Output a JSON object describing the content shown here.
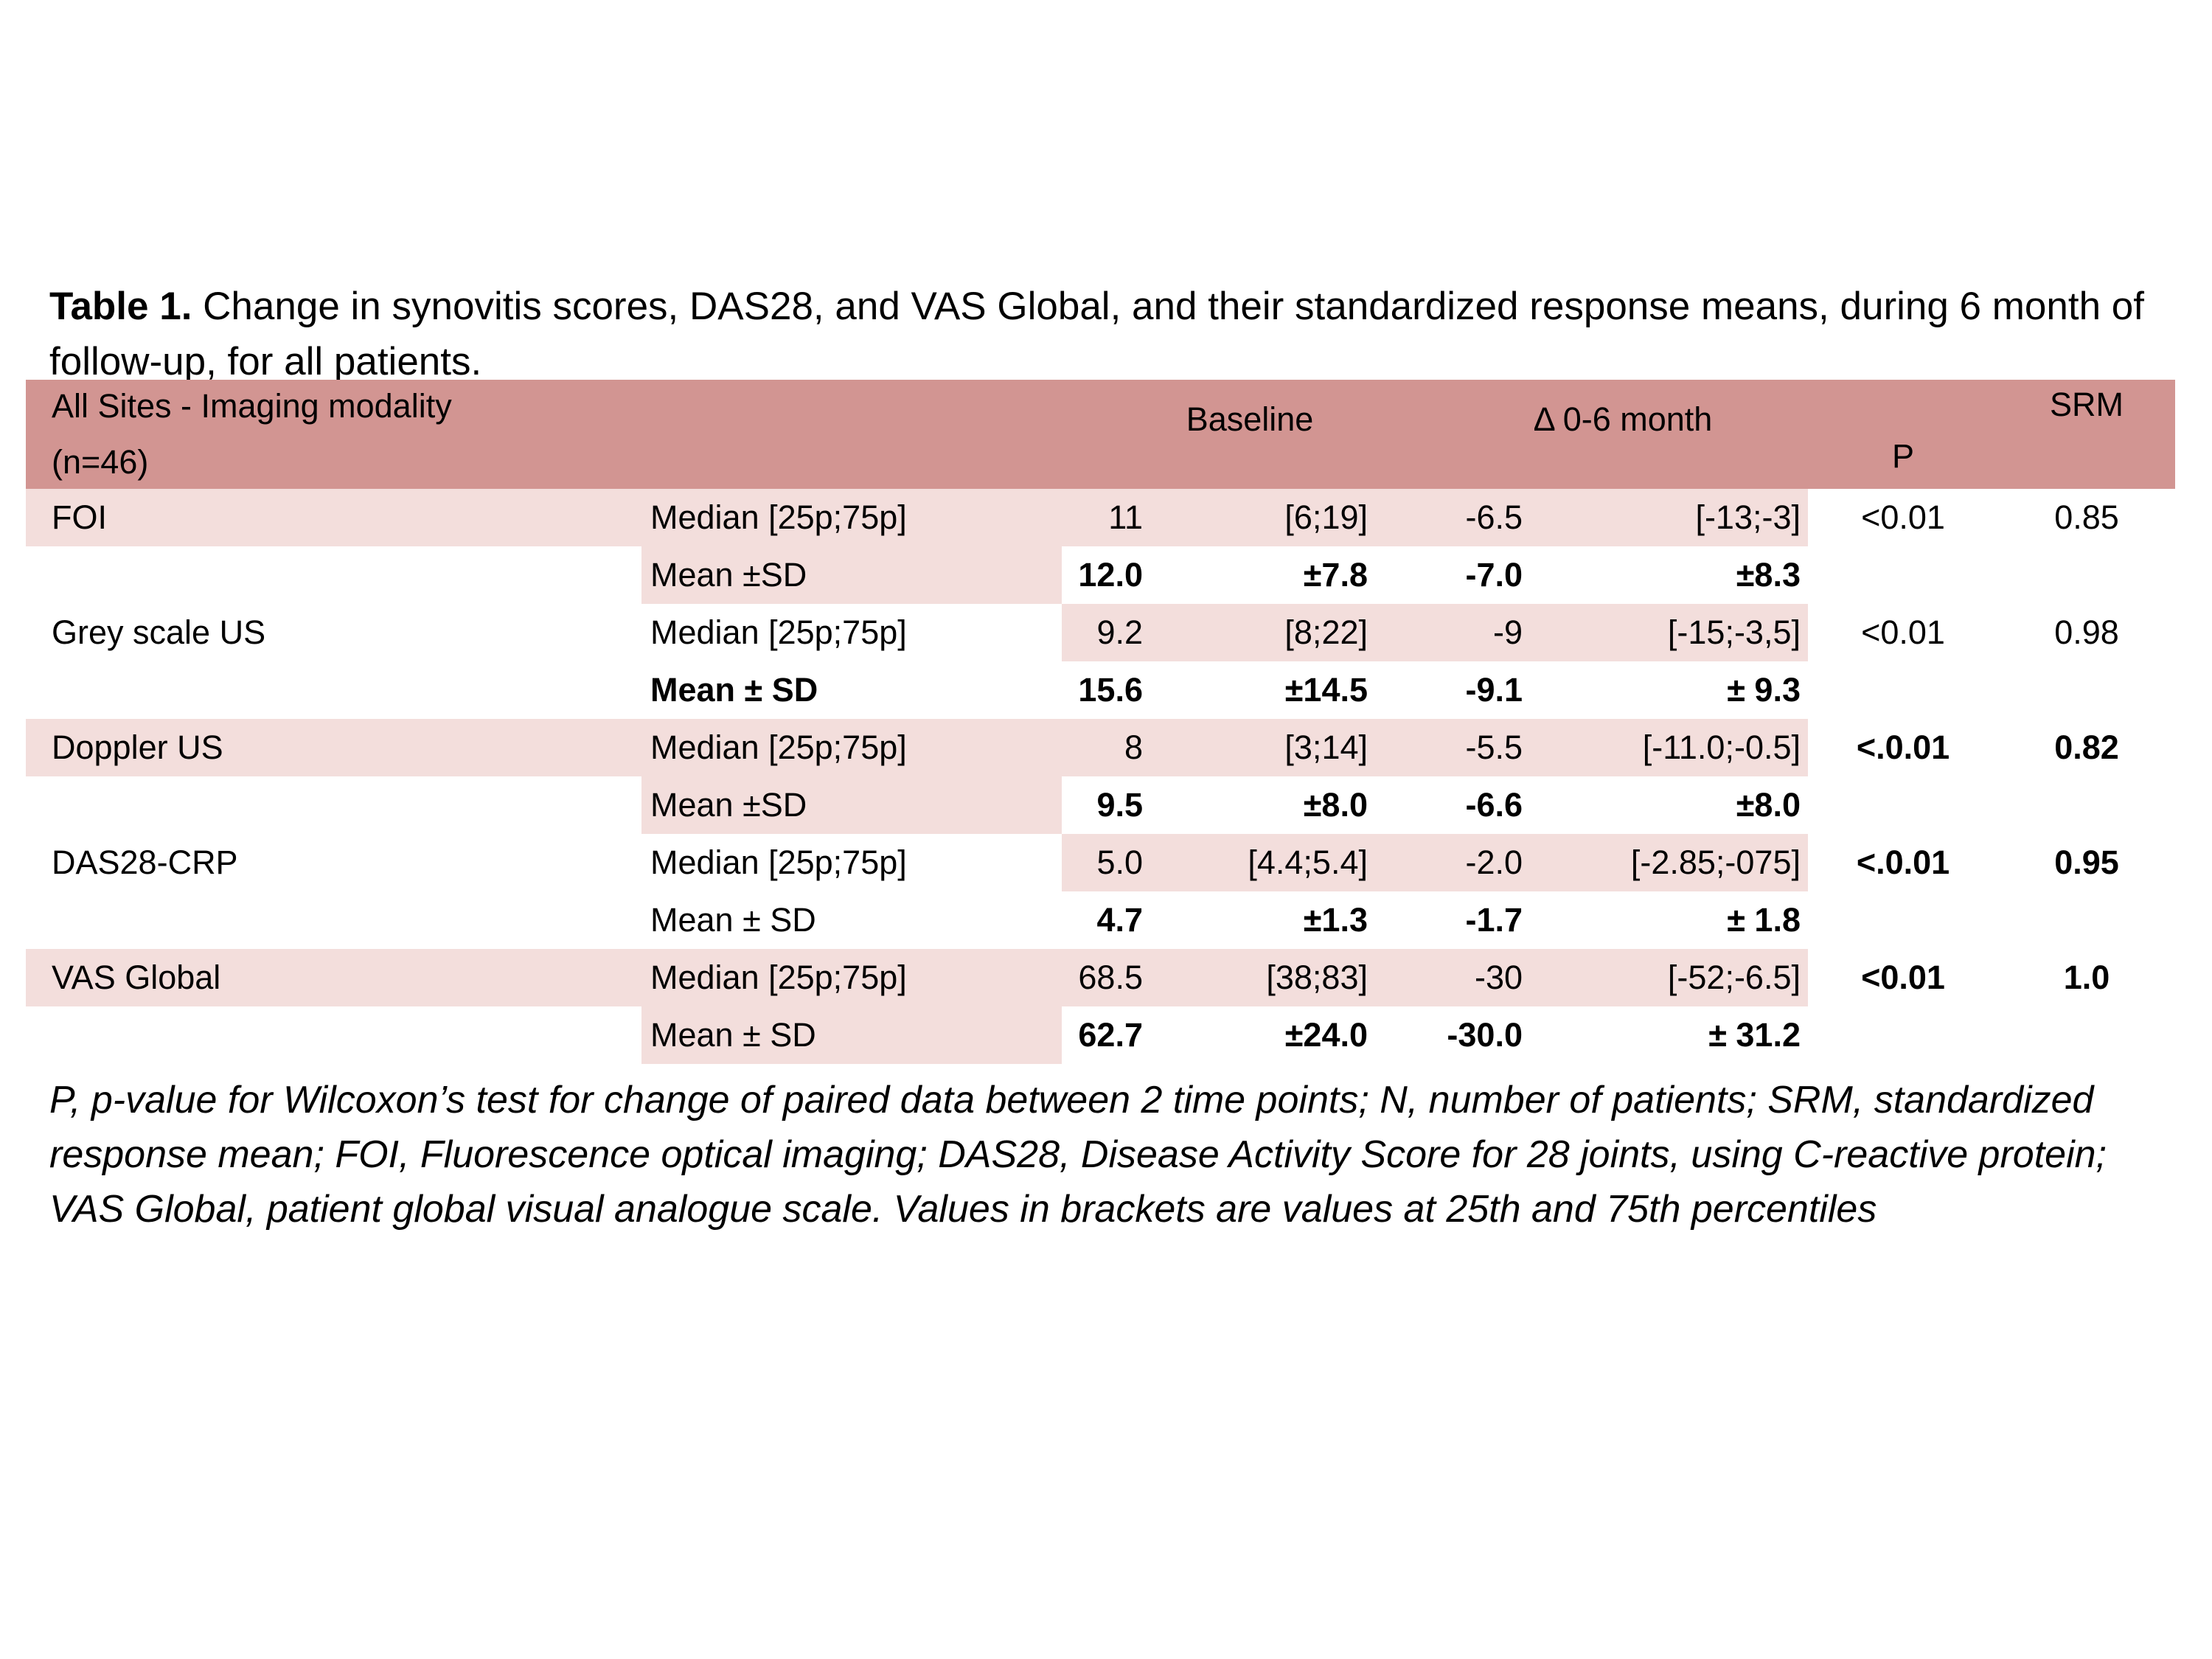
{
  "title": {
    "label": "Table 1.",
    "text": " Change in synovitis scores, DAS28, and VAS Global, and their standardized response means, during 6 month of follow-up, for all patients."
  },
  "table": {
    "header": {
      "col1_line1": "All Sites - Imaging modality",
      "col1_line2": "(n=46)",
      "baseline": "Baseline",
      "delta": "Δ 0-6 month",
      "p": "P",
      "srm": "SRM"
    },
    "groups": [
      {
        "label": "FOI",
        "p": "<0.01",
        "srm": "0.85",
        "median": {
          "label": "Median [25p;75p]",
          "v1": "11",
          "v2": "[6;19]",
          "v3": "-6.5",
          "v4": "[-13;-3]"
        },
        "mean": {
          "label": "Mean ±SD",
          "v1": "12.0",
          "v2": "±7.8",
          "v3": "-7.0",
          "v4": "±8.3"
        }
      },
      {
        "label": "Grey scale US",
        "p": "<0.01",
        "srm": "0.98",
        "median": {
          "label": "Median [25p;75p]",
          "v1": "9.2",
          "v2": "[8;22]",
          "v3": "-9",
          "v4": "[-15;-3,5]"
        },
        "mean": {
          "label": "Mean ± SD",
          "v1": "15.6",
          "v2": "±14.5",
          "v3": "-9.1",
          "v4": "± 9.3"
        }
      },
      {
        "label": "Doppler US",
        "p": "<.0.01",
        "srm": "0.82",
        "median": {
          "label": "Median [25p;75p]",
          "v1": "8",
          "v2": "[3;14]",
          "v3": "-5.5",
          "v4": "[-11.0;-0.5]"
        },
        "mean": {
          "label": "Mean ±SD",
          "v1": "9.5",
          "v2": "±8.0",
          "v3": "-6.6",
          "v4": "±8.0"
        }
      },
      {
        "label": "DAS28-CRP",
        "p": "<.0.01",
        "srm": "0.95",
        "median": {
          "label": "Median [25p;75p]",
          "v1": "5.0",
          "v2": "[4.4;5.4]",
          "v3": "-2.0",
          "v4": "[-2.85;-075]"
        },
        "mean": {
          "label": "Mean ± SD",
          "v1": "4.7",
          "v2": "±1.3",
          "v3": "-1.7",
          "v4": "± 1.8"
        }
      },
      {
        "label": "VAS Global",
        "p": "<0.01",
        "srm": "1.0",
        "median": {
          "label": "Median [25p;75p]",
          "v1": "68.5",
          "v2": "[38;83]",
          "v3": "-30",
          "v4": "[-52;-6.5]"
        },
        "mean": {
          "label": "Mean ± SD",
          "v1": "62.7",
          "v2": "±24.0",
          "v3": "-30.0",
          "v4": "± 31.2"
        }
      }
    ]
  },
  "footnote": "P, p-value for Wilcoxon’s test for change of paired data between 2 time points; N, number of patients; SRM, standardized response mean; FOI, Fluorescence optical imaging; DAS28, Disease Activity Score for 28 joints, using C-reactive protein; VAS Global, patient global visual analogue scale. Values in brackets are values at 25th and 75th percentiles",
  "colors": {
    "header_bg": "#D29592",
    "row_pink": "#F3DEDC",
    "text": "#000000",
    "page_bg": "#FFFFFF"
  }
}
